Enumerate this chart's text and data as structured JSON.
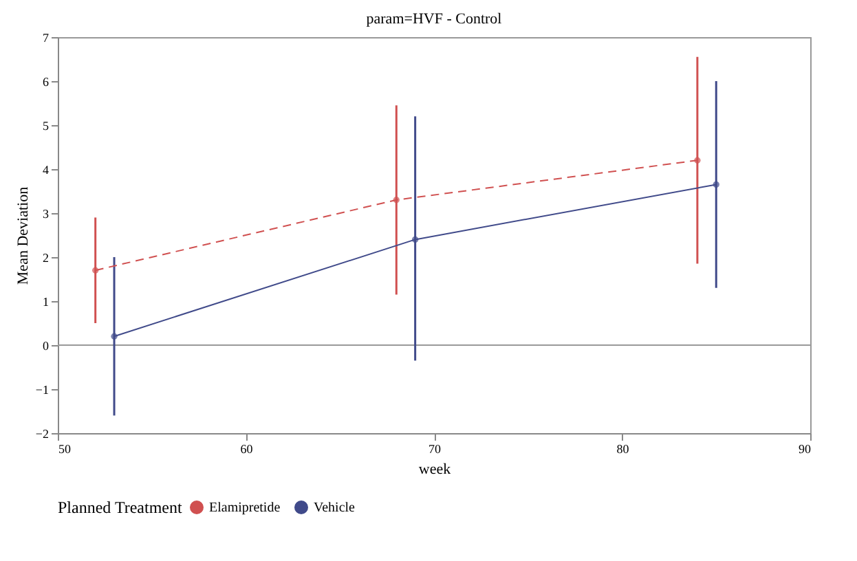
{
  "chart_data": {
    "type": "line",
    "title": "param=HVF - Control",
    "xlabel": "week",
    "ylabel": "Mean Deviation",
    "legend_title": "Planned Treatment",
    "xlim": [
      50,
      90
    ],
    "xticks": [
      50,
      60,
      70,
      80,
      90
    ],
    "ylim": [
      -2,
      7
    ],
    "yticks": [
      -2,
      -1,
      0,
      1,
      2,
      3,
      4,
      5,
      6,
      7
    ],
    "series": [
      {
        "name": "Elamipretide",
        "color": "#d05050",
        "x": [
          52,
          68,
          84
        ],
        "values": [
          1.7,
          3.3,
          4.2
        ],
        "errors": [
          [
            0.5,
            2.9
          ],
          [
            1.15,
            5.45
          ],
          [
            1.85,
            6.55
          ]
        ],
        "line_style": "dashed"
      },
      {
        "name": "Vehicle",
        "color": "#404a8a",
        "x": [
          53,
          69,
          85
        ],
        "values": [
          0.2,
          2.4,
          3.65
        ],
        "errors": [
          [
            -1.6,
            2.0
          ],
          [
            -0.35,
            5.2
          ],
          [
            1.3,
            6.0
          ]
        ],
        "line_style": "solid"
      }
    ],
    "ref_lines": [
      {
        "axis": "y",
        "value": 0,
        "color": "#999999"
      }
    ],
    "marker": "circle",
    "grid": false,
    "legend": "bottom"
  }
}
